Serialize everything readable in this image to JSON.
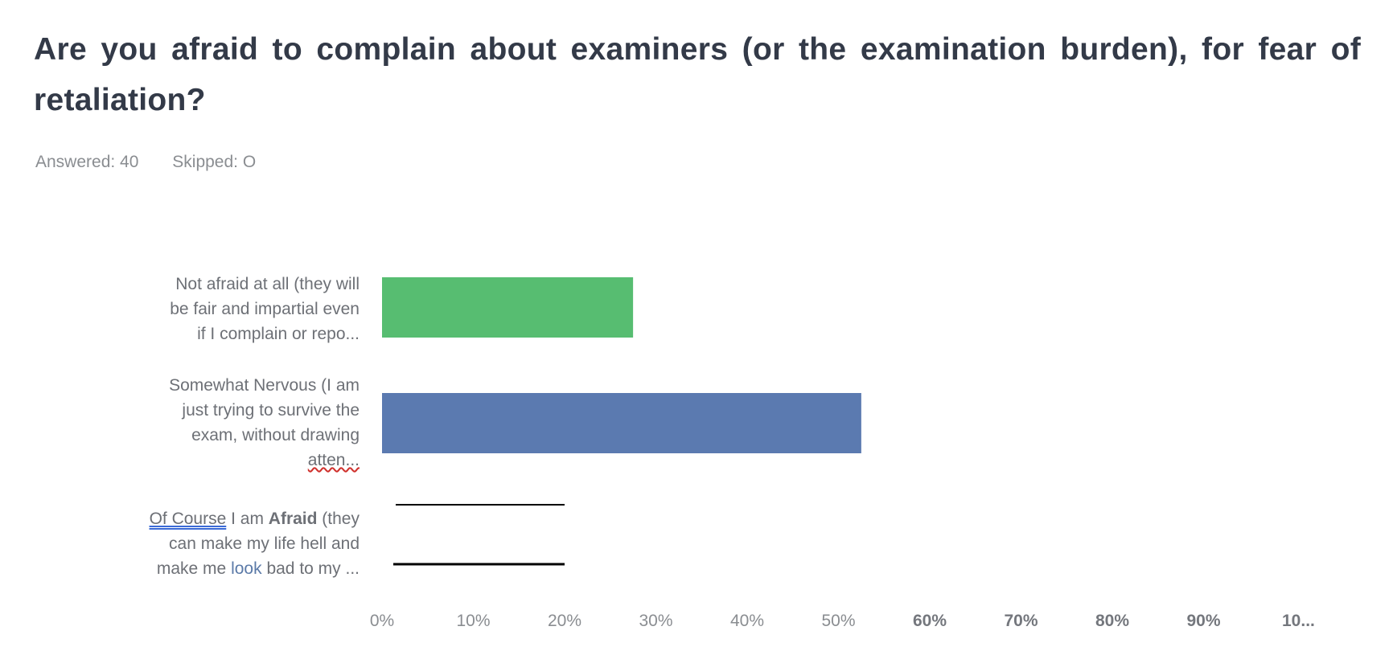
{
  "question": {
    "title": "Are you afraid to complain about examiners (or the examination burden), for fear of retaliation?",
    "answered": "Answered: 40",
    "skipped": "Skipped: O"
  },
  "chart_data": {
    "type": "bar",
    "orientation": "horizontal",
    "categories": [
      "Not  afraid at all (they will be fair and impartial even if  I complain or repo...",
      "Somewhat Nervous (I am just trying to survive the exam, without drawing atten...",
      "Of Course I am Afraid (they can make my life hell and make me look bad to my ..."
    ],
    "label_lines": [
      [
        "Not  afraid at all (they will",
        "be fair and impartial even",
        "if  I complain or repo..."
      ],
      [
        "Somewhat Nervous (I am",
        "just trying to survive the",
        "exam, without drawing",
        "atten..."
      ],
      [
        "Of Course I am Afraid (they",
        "can make my life hell and",
        "make me look bad to my ..."
      ]
    ],
    "values": [
      27.5,
      52.5,
      20
    ],
    "colors": [
      "#57bd71",
      "#5b7ab0",
      "none"
    ],
    "xlim": [
      0,
      100
    ],
    "x_ticks": [
      "0%",
      "10%",
      "20%",
      "30%",
      "40%",
      "50%",
      "60%",
      "70%",
      "80%",
      "90%",
      "10..."
    ],
    "grid": false,
    "legend": "none",
    "xlabel": "",
    "ylabel": ""
  }
}
